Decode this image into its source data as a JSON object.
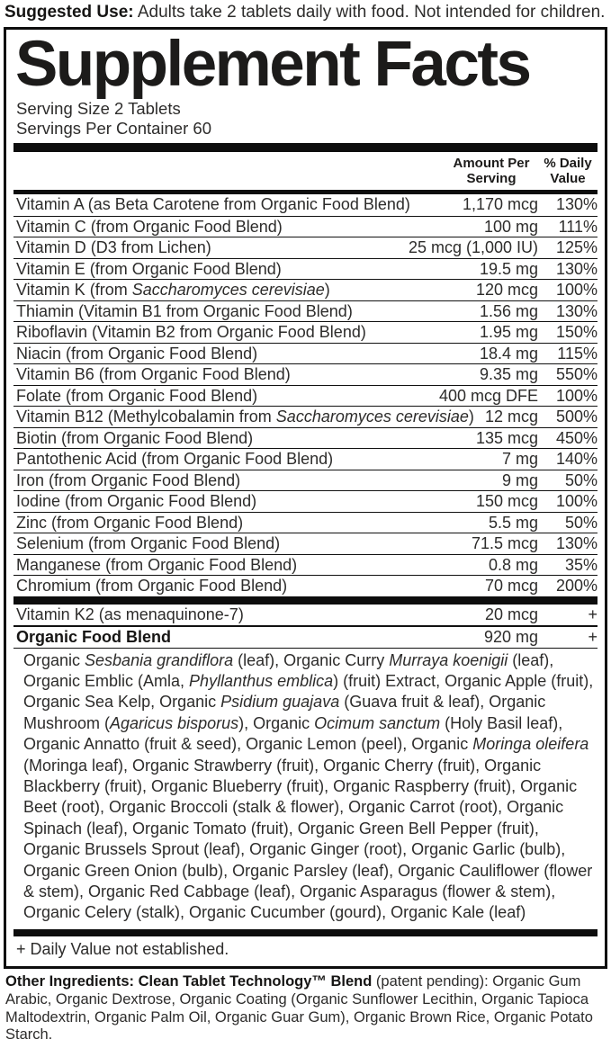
{
  "suggested_use": {
    "label": "Suggested Use:",
    "text": " Adults take 2 tablets daily with food. Not intended for children."
  },
  "panel": {
    "title": "Supplement Facts",
    "serving_size": "Serving Size 2 Tablets",
    "servings_per_container": "Servings Per Container 60",
    "columns": {
      "amount": "Amount Per Serving",
      "dv": "% Daily Value"
    },
    "rows": [
      {
        "name": "Vitamin A (as Beta Carotene from Organic Food Blend)",
        "amount": "1,170 mcg",
        "dv": "130%"
      },
      {
        "name": "Vitamin C (from Organic Food Blend)",
        "amount": "100 mg",
        "dv": "111%"
      },
      {
        "name": "Vitamin D (D3 from Lichen)",
        "amount": "25 mcg (1,000 IU)",
        "dv": "125%"
      },
      {
        "name": "Vitamin E (from Organic Food Blend)",
        "amount": "19.5 mg",
        "dv": "130%"
      },
      {
        "name": "Vitamin K (from _Saccharomyces cerevisiae_)",
        "amount": "120 mcg",
        "dv": "100%"
      },
      {
        "name": "Thiamin (Vitamin B1 from Organic Food Blend)",
        "amount": "1.56 mg",
        "dv": "130%"
      },
      {
        "name": "Riboflavin (Vitamin B2 from Organic Food Blend)",
        "amount": "1.95 mg",
        "dv": "150%"
      },
      {
        "name": "Niacin (from Organic Food Blend)",
        "amount": "18.4 mg",
        "dv": "115%"
      },
      {
        "name": "Vitamin B6 (from Organic Food Blend)",
        "amount": "9.35 mg",
        "dv": "550%"
      },
      {
        "name": "Folate (from Organic Food Blend)",
        "amount": "400 mcg DFE",
        "dv": "100%"
      },
      {
        "name": "Vitamin B12 (Methylcobalamin from _Saccharomyces cerevisiae_)",
        "amount": "12 mcg",
        "dv": "500%"
      },
      {
        "name": "Biotin (from Organic Food Blend)",
        "amount": "135 mcg",
        "dv": "450%"
      },
      {
        "name": "Pantothenic Acid (from Organic Food Blend)",
        "amount": "7 mg",
        "dv": "140%"
      },
      {
        "name": "Iron (from Organic Food Blend)",
        "amount": "9 mg",
        "dv": "50%"
      },
      {
        "name": "Iodine (from Organic Food Blend)",
        "amount": "150 mcg",
        "dv": "100%"
      },
      {
        "name": "Zinc (from Organic Food Blend)",
        "amount": "5.5 mg",
        "dv": "50%"
      },
      {
        "name": "Selenium (from Organic Food Blend)",
        "amount": "71.5 mcg",
        "dv": "130%"
      },
      {
        "name": "Manganese (from Organic Food Blend)",
        "amount": "0.8 mg",
        "dv": "35%"
      },
      {
        "name": "Chromium (from Organic Food Blend)",
        "amount": "70 mcg",
        "dv": "200%"
      }
    ],
    "extra_rows": [
      {
        "name": "Vitamin K2 (as menaquinone-7)",
        "amount": "20 mcg",
        "dv": "+",
        "bold": false
      },
      {
        "name": "Organic Food Blend",
        "amount": "920 mg",
        "dv": "+",
        "bold": true
      }
    ],
    "blend_description": "Organic _Sesbania grandiflora_ (leaf), Organic Curry _Murraya koenigii_ (leaf), Organic Emblic (Amla, _Phyllanthus emblica_) (fruit) Extract, Organic Apple (fruit), Organic Sea Kelp, Organic _Psidium guajava_ (Guava fruit & leaf), Organic Mushroom (_Agaricus bisporus_), Organic _Ocimum sanctum_ (Holy Basil leaf), Organic Annatto (fruit & seed), Organic Lemon (peel), Organic _Moringa oleifera_ (Moringa leaf), Organic Strawberry (fruit), Organic Cherry (fruit), Organic Blackberry (fruit), Organic Blueberry (fruit), Organic Raspberry (fruit), Organic Beet (root), Organic Broccoli (stalk & flower), Organic Carrot (root), Organic Spinach (leaf), Organic Tomato (fruit), Organic Green Bell Pepper (fruit), Organic Brussels Sprout (leaf), Organic Ginger (root), Organic Garlic (bulb), Organic Green Onion (bulb), Organic Parsley (leaf), Organic Cauliflower (flower & stem), Organic Red Cabbage (leaf), Organic Asparagus (flower & stem), Organic Celery (stalk), Organic Cucumber (gourd), Organic Kale (leaf)",
    "footnote": "+ Daily Value not established."
  },
  "other_ingredients": {
    "bold": "Other Ingredients: Clean Tablet Technology™ Blend",
    "text": " (patent pending): Organic Gum Arabic, Organic Dextrose, Organic Coating (Organic Sunflower Lecithin, Organic Tapioca Maltodextrin, Organic Palm Oil, Organic Guar Gum), Organic Brown Rice, Organic Potato Starch."
  },
  "colors": {
    "background": "#ffffff",
    "text": "#2d2c2b",
    "bold_text": "#161514",
    "border": "#0d0d0d"
  }
}
